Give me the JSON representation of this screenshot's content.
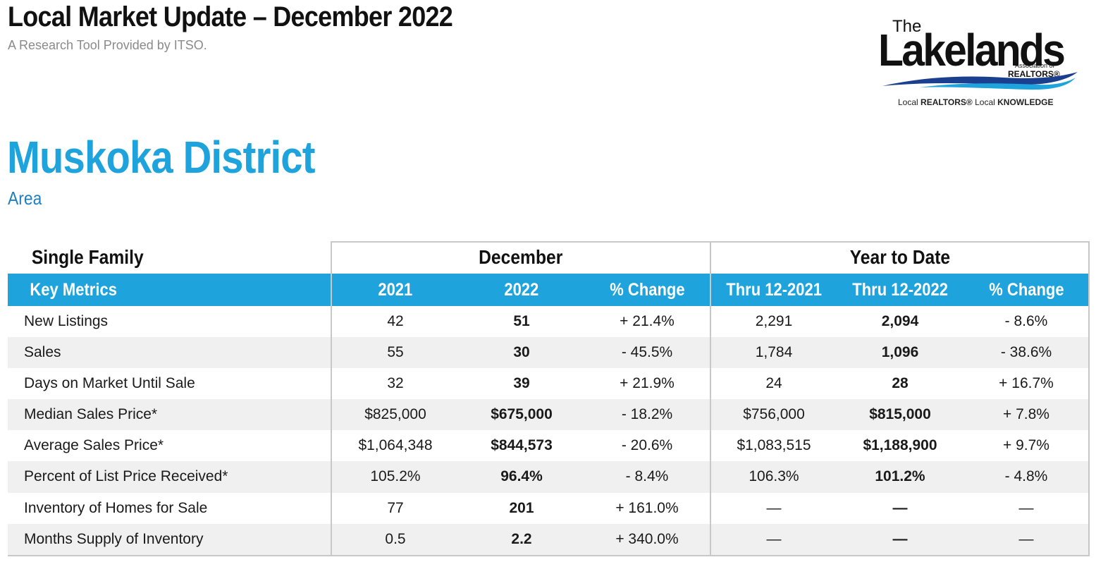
{
  "header": {
    "title": "Local Market Update – December 2022",
    "subtitle": "A Research Tool Provided by ITSO."
  },
  "logo": {
    "the": "The",
    "name": "Lakelands",
    "assoc": "Association of",
    "realtors": "REALTORS®",
    "tagline_1": "Local ",
    "tagline_2": "REALTORS®",
    "tagline_3": " Local ",
    "tagline_4": "KNOWLEDGE",
    "colors": {
      "wave_dark": "#1b3f8f",
      "wave_light": "#1ea3dc"
    }
  },
  "region": {
    "name": "Muskoka District",
    "type": "Area"
  },
  "table": {
    "property_type": "Single Family",
    "group_month": "December",
    "group_ytd": "Year to Date",
    "columns": [
      "Key Metrics",
      "2021",
      "2022",
      "% Change",
      "Thru 12-2021",
      "Thru 12-2022",
      "% Change"
    ],
    "rows": [
      [
        "New Listings",
        "42",
        "51",
        "+ 21.4%",
        "2,291",
        "2,094",
        "- 8.6%"
      ],
      [
        "Sales",
        "55",
        "30",
        "- 45.5%",
        "1,784",
        "1,096",
        "- 38.6%"
      ],
      [
        "Days on Market Until Sale",
        "32",
        "39",
        "+ 21.9%",
        "24",
        "28",
        "+ 16.7%"
      ],
      [
        "Median Sales Price*",
        "$825,000",
        "$675,000",
        "- 18.2%",
        "$756,000",
        "$815,000",
        "+ 7.8%"
      ],
      [
        "Average Sales Price*",
        "$1,064,348",
        "$844,573",
        "- 20.6%",
        "$1,083,515",
        "$1,188,900",
        "+ 9.7%"
      ],
      [
        "Percent of List Price Received*",
        "105.2%",
        "96.4%",
        "- 8.4%",
        "106.3%",
        "101.2%",
        "- 4.8%"
      ],
      [
        "Inventory of Homes for Sale",
        "77",
        "201",
        "+ 161.0%",
        "—",
        "—",
        "—"
      ],
      [
        "Months Supply of Inventory",
        "0.5",
        "2.2",
        "+ 340.0%",
        "—",
        "—",
        "—"
      ]
    ],
    "colors": {
      "header_bg": "#1ea3dc",
      "alt_row": "#f0f0f0",
      "region": "#1ea3dc"
    }
  }
}
